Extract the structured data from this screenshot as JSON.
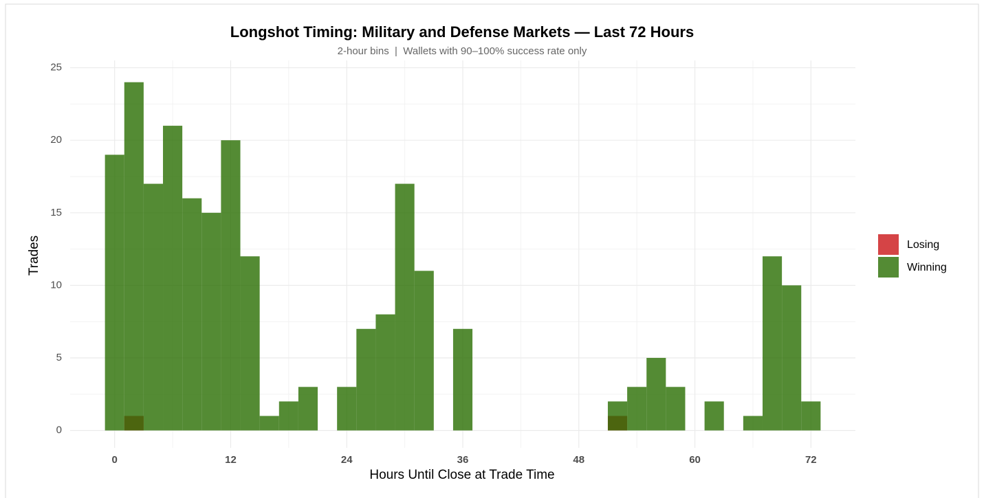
{
  "chart_data": {
    "type": "histogram",
    "title": "Longshot Timing: Military and Defense Markets — Last 72 Hours",
    "subtitle": "2-hour bins  |  Wallets with 90–100% success rate only",
    "x_label": "Hours Until Close at Trade Time",
    "y_label": "Trades",
    "bins": [
      -1,
      1,
      3,
      5,
      7,
      9,
      11,
      13,
      15,
      17,
      19,
      21,
      23,
      25,
      27,
      29,
      31,
      33,
      35,
      37,
      39,
      41,
      43,
      45,
      47,
      49,
      51,
      53,
      55,
      57,
      59,
      61,
      63,
      65,
      67,
      69,
      71,
      73
    ],
    "series": [
      {
        "name": "Losing",
        "color": "#ca1518",
        "values": [
          0,
          1,
          0,
          0,
          0,
          0,
          0,
          0,
          0,
          0,
          0,
          0,
          0,
          0,
          0,
          0,
          0,
          0,
          0,
          0,
          0,
          0,
          0,
          0,
          0,
          0,
          1,
          0,
          0,
          0,
          0,
          0,
          0,
          0,
          0,
          0,
          0
        ]
      },
      {
        "name": "Winning",
        "color": "#296e01",
        "values": [
          19,
          24,
          17,
          21,
          16,
          15,
          20,
          12,
          1,
          2,
          3,
          0,
          3,
          7,
          8,
          17,
          11,
          0,
          7,
          0,
          0,
          0,
          0,
          0,
          0,
          0,
          2,
          3,
          5,
          3,
          0,
          2,
          0,
          1,
          12,
          10,
          2
        ]
      }
    ],
    "opacity": 0.8,
    "xlim": [
      -4.6,
      76.6
    ],
    "xticks": [
      0,
      12,
      24,
      36,
      48,
      60,
      72
    ],
    "ylim": [
      -1.2,
      25.5
    ],
    "yticks": [
      0,
      5,
      10,
      15,
      20,
      25
    ],
    "grid": true,
    "legend": "right"
  }
}
